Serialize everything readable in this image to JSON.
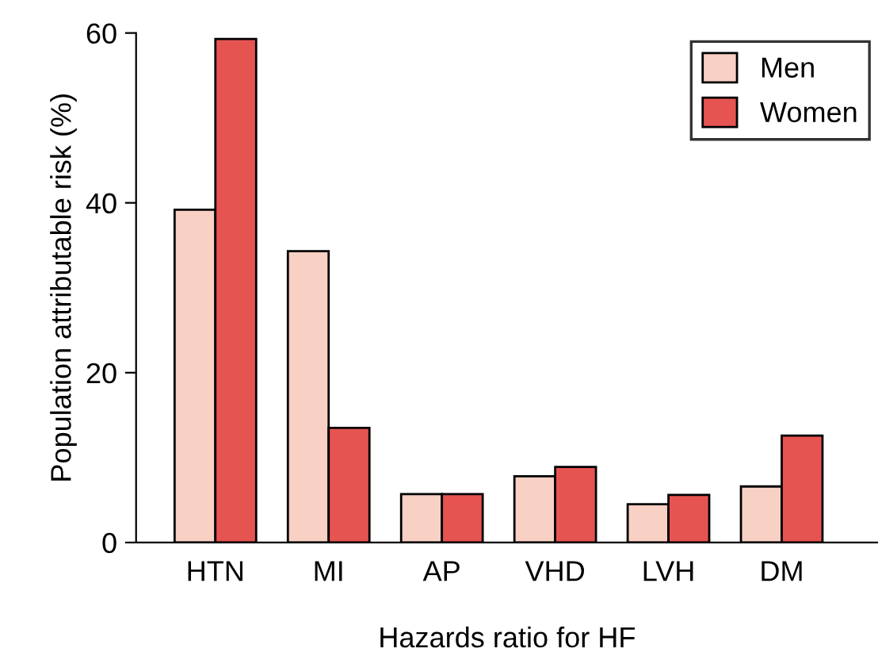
{
  "chart_data": {
    "type": "bar",
    "xlabel": "Hazards ratio for HF",
    "ylabel": "Population attributable risk (%)",
    "categories": [
      "HTN",
      "MI",
      "AP",
      "VHD",
      "LVH",
      "DM"
    ],
    "series": [
      {
        "name": "Men",
        "color": "#f8d0c4",
        "values": [
          39.2,
          34.3,
          5.7,
          7.8,
          4.5,
          6.6
        ]
      },
      {
        "name": "Women",
        "color": "#e65452",
        "values": [
          59.3,
          13.5,
          5.7,
          8.9,
          5.6,
          12.6
        ]
      }
    ],
    "ylim": [
      0,
      60
    ],
    "yticks": [
      0,
      20,
      40,
      60
    ],
    "legend": "top right",
    "grid": false
  }
}
